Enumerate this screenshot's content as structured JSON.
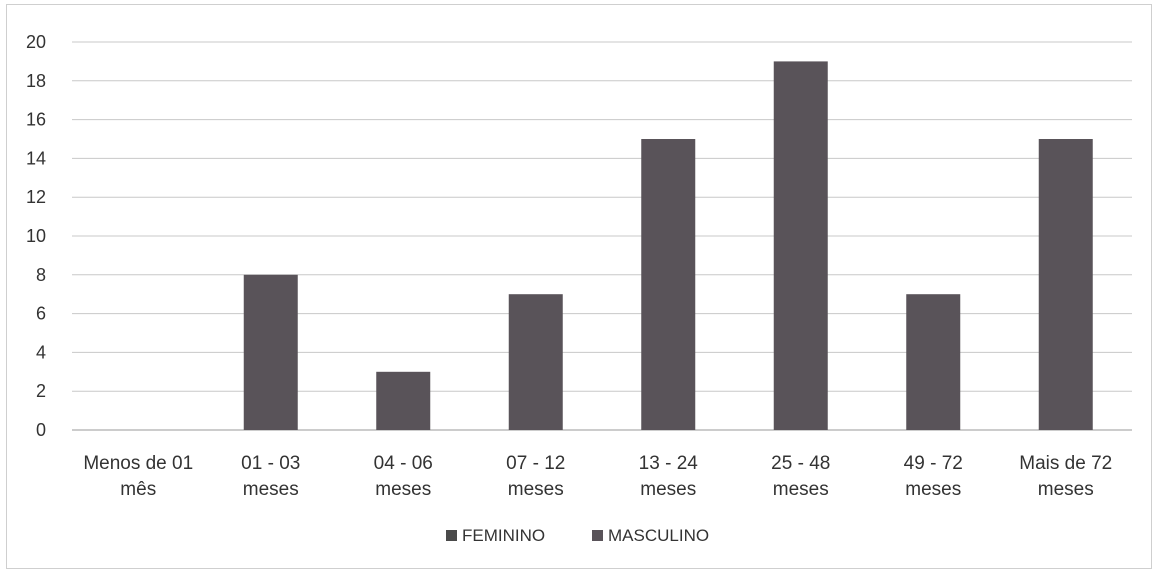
{
  "chart_data": {
    "type": "bar",
    "categories": [
      [
        "Menos de 01",
        "mês"
      ],
      [
        "01 - 03",
        "meses"
      ],
      [
        "04 - 06",
        "meses"
      ],
      [
        "07 - 12",
        "meses"
      ],
      [
        "13 - 24",
        "meses"
      ],
      [
        "25 - 48",
        "meses"
      ],
      [
        "49 - 72",
        "meses"
      ],
      [
        "Mais de 72",
        "meses"
      ]
    ],
    "series": [
      {
        "name": "FEMININO",
        "values": [
          0,
          0,
          0,
          0,
          0,
          0,
          0,
          0
        ],
        "color": "#4a4a4a"
      },
      {
        "name": "MASCULINO",
        "values": [
          0,
          8,
          3,
          7,
          15,
          19,
          7,
          15
        ],
        "color": "#595359"
      }
    ],
    "ylim": [
      0,
      20
    ],
    "yticks": [
      0,
      2,
      4,
      6,
      8,
      10,
      12,
      14,
      16,
      18,
      20
    ],
    "grid": true,
    "legend_position": "bottom"
  }
}
